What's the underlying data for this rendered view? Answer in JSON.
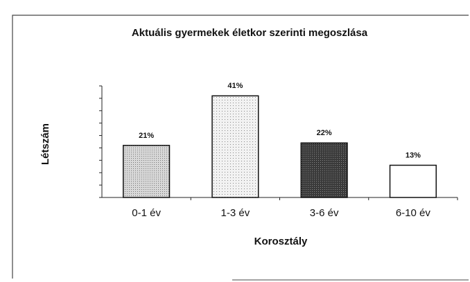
{
  "chart_data": {
    "type": "bar",
    "title": "Aktuális gyermekek életkor szerinti megoszlása",
    "xlabel": "Korosztály",
    "ylabel": "Létszám",
    "categories": [
      "0-1 év",
      "1-3 év",
      "3-6 év",
      "6-10 év"
    ],
    "values": [
      21,
      41,
      22,
      13
    ],
    "value_labels": [
      "21%",
      "41%",
      "22%",
      "13%"
    ],
    "colors": [
      "#c8c8c8",
      "#ececec",
      "#4a4a4a",
      "#ffffff"
    ],
    "ylim": [
      0,
      45
    ],
    "yticks": [
      0,
      5,
      10,
      15,
      20,
      25,
      30,
      35,
      40,
      45
    ]
  }
}
